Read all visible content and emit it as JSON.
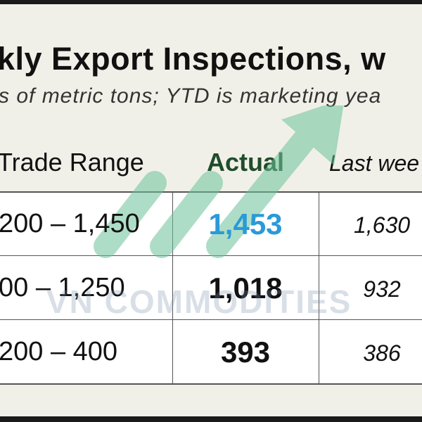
{
  "header": {
    "title": "kly Export Inspections, w",
    "subtitle": "s of metric tons; YTD is marketing yea"
  },
  "table": {
    "columns": [
      "Trade Range",
      "Actual",
      "Last wee"
    ],
    "rows": [
      [
        "200 – 1,450",
        "1,453",
        "1,630"
      ],
      [
        "00 – 1,250",
        "1,018",
        "932"
      ],
      [
        "200 – 400",
        "393",
        "386"
      ]
    ]
  },
  "watermark": "VN COMMODITIES"
}
